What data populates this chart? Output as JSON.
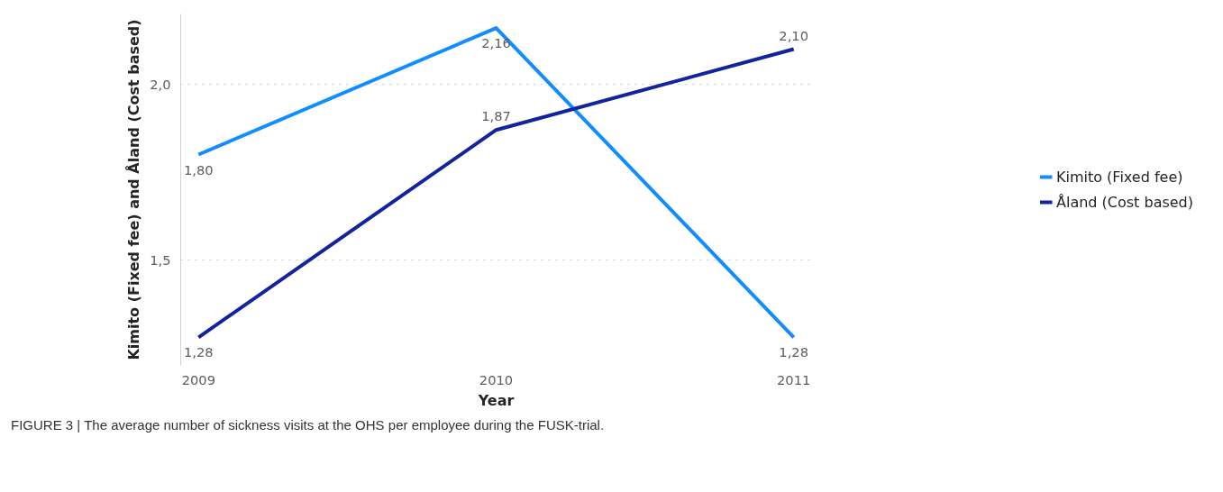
{
  "chart_data": {
    "type": "line",
    "xlabel": "Year",
    "ylabel": "Kimito (Fixed fee) and Åland (Cost based)",
    "categories": [
      "2009",
      "2010",
      "2011"
    ],
    "series": [
      {
        "name": "Kimito (Fixed fee)",
        "color": "#118dff",
        "values": [
          1.8,
          2.16,
          1.28
        ],
        "value_labels": [
          "1,80",
          "2,16",
          "1,28"
        ]
      },
      {
        "name": "Åland (Cost based)",
        "color": "#12239e",
        "values": [
          1.28,
          1.87,
          2.1
        ],
        "value_labels": [
          "1,28",
          "1,87",
          "2,10"
        ]
      }
    ],
    "ylim": [
      1.2,
      2.2
    ],
    "yticks": [
      {
        "value": 1.5,
        "label": "1,5"
      },
      {
        "value": 2.0,
        "label": "2,0"
      }
    ],
    "grid": "y",
    "legend": "right",
    "marker": "none",
    "line_style": "solid",
    "annotations": [
      "FIGURE 3 | The average number of sickness visits at the OHS per employee during the FUSK-trial."
    ]
  }
}
